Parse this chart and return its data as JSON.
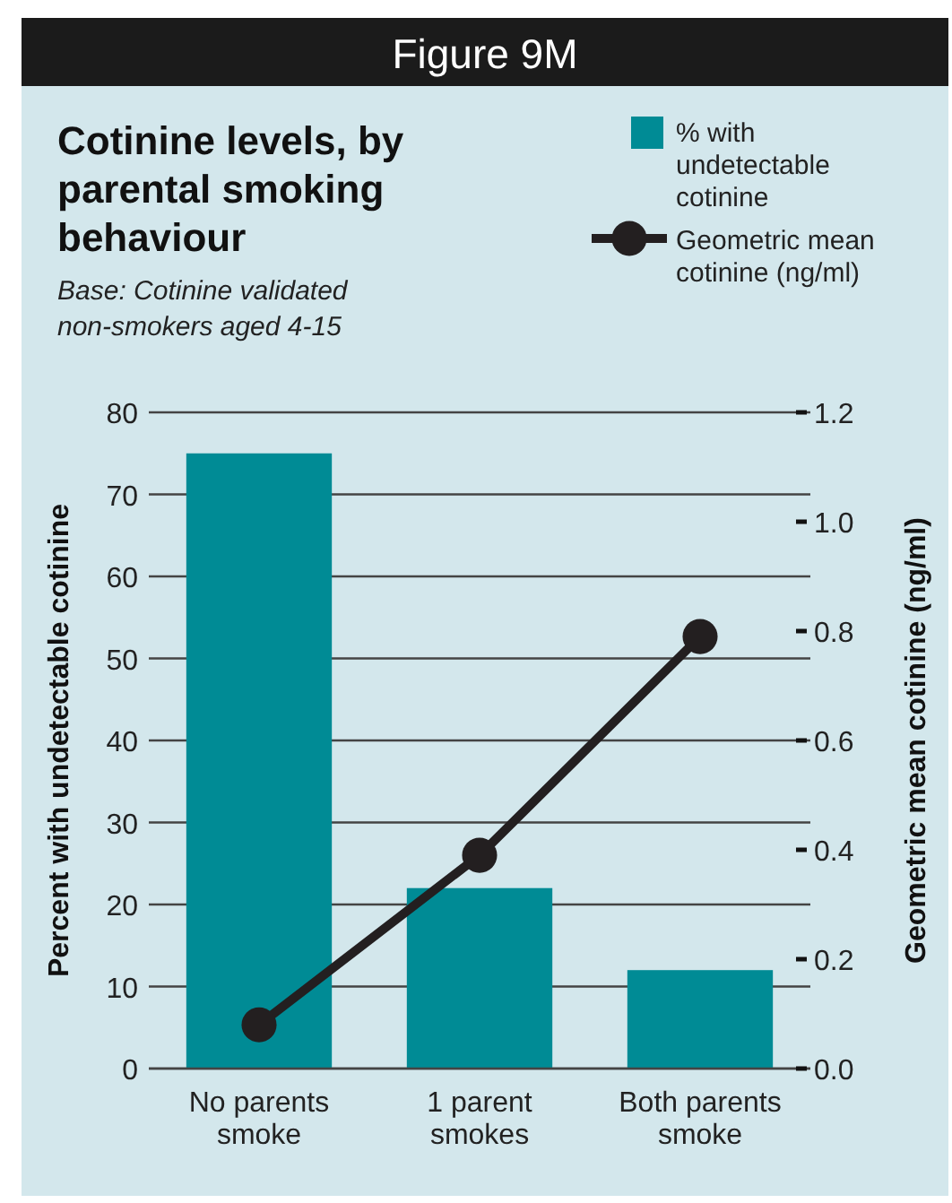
{
  "chart_data": {
    "type": "bar",
    "title": "Cotinine levels, by parental smoking behaviour",
    "subtitle": "Base: Cotinine validated non-smokers aged 4-15",
    "annotations": [
      "Figure 9M"
    ],
    "categories": [
      "No parents smoke",
      "1 parent smokes",
      "Both parents smoke"
    ],
    "series": [
      {
        "name": "% with undetectable cotinine",
        "color": "#008b95",
        "values": [
          75,
          22,
          12
        ]
      },
      {
        "name": "Geometric mean cotinine (ng/ml)",
        "type": "line",
        "axis": "y2",
        "color": "#231f20",
        "marker": "circle",
        "values": [
          0.08,
          0.39,
          0.79
        ]
      }
    ],
    "ylabel": "Percent with undetectable cotinine",
    "y2label": "Geometric mean cotinine (ng/ml)",
    "ylim": [
      0,
      80
    ],
    "yticks": [
      0,
      10,
      20,
      30,
      40,
      50,
      60,
      70,
      80
    ],
    "y2lim": [
      0,
      1.2
    ],
    "y2ticks": [
      {
        "value": 0,
        "label": "0.0"
      },
      0.2,
      0.4,
      0.6,
      0.8,
      {
        "value": 1,
        "label": "1.0"
      },
      1.2
    ],
    "grid": "y",
    "legend": "top right"
  }
}
